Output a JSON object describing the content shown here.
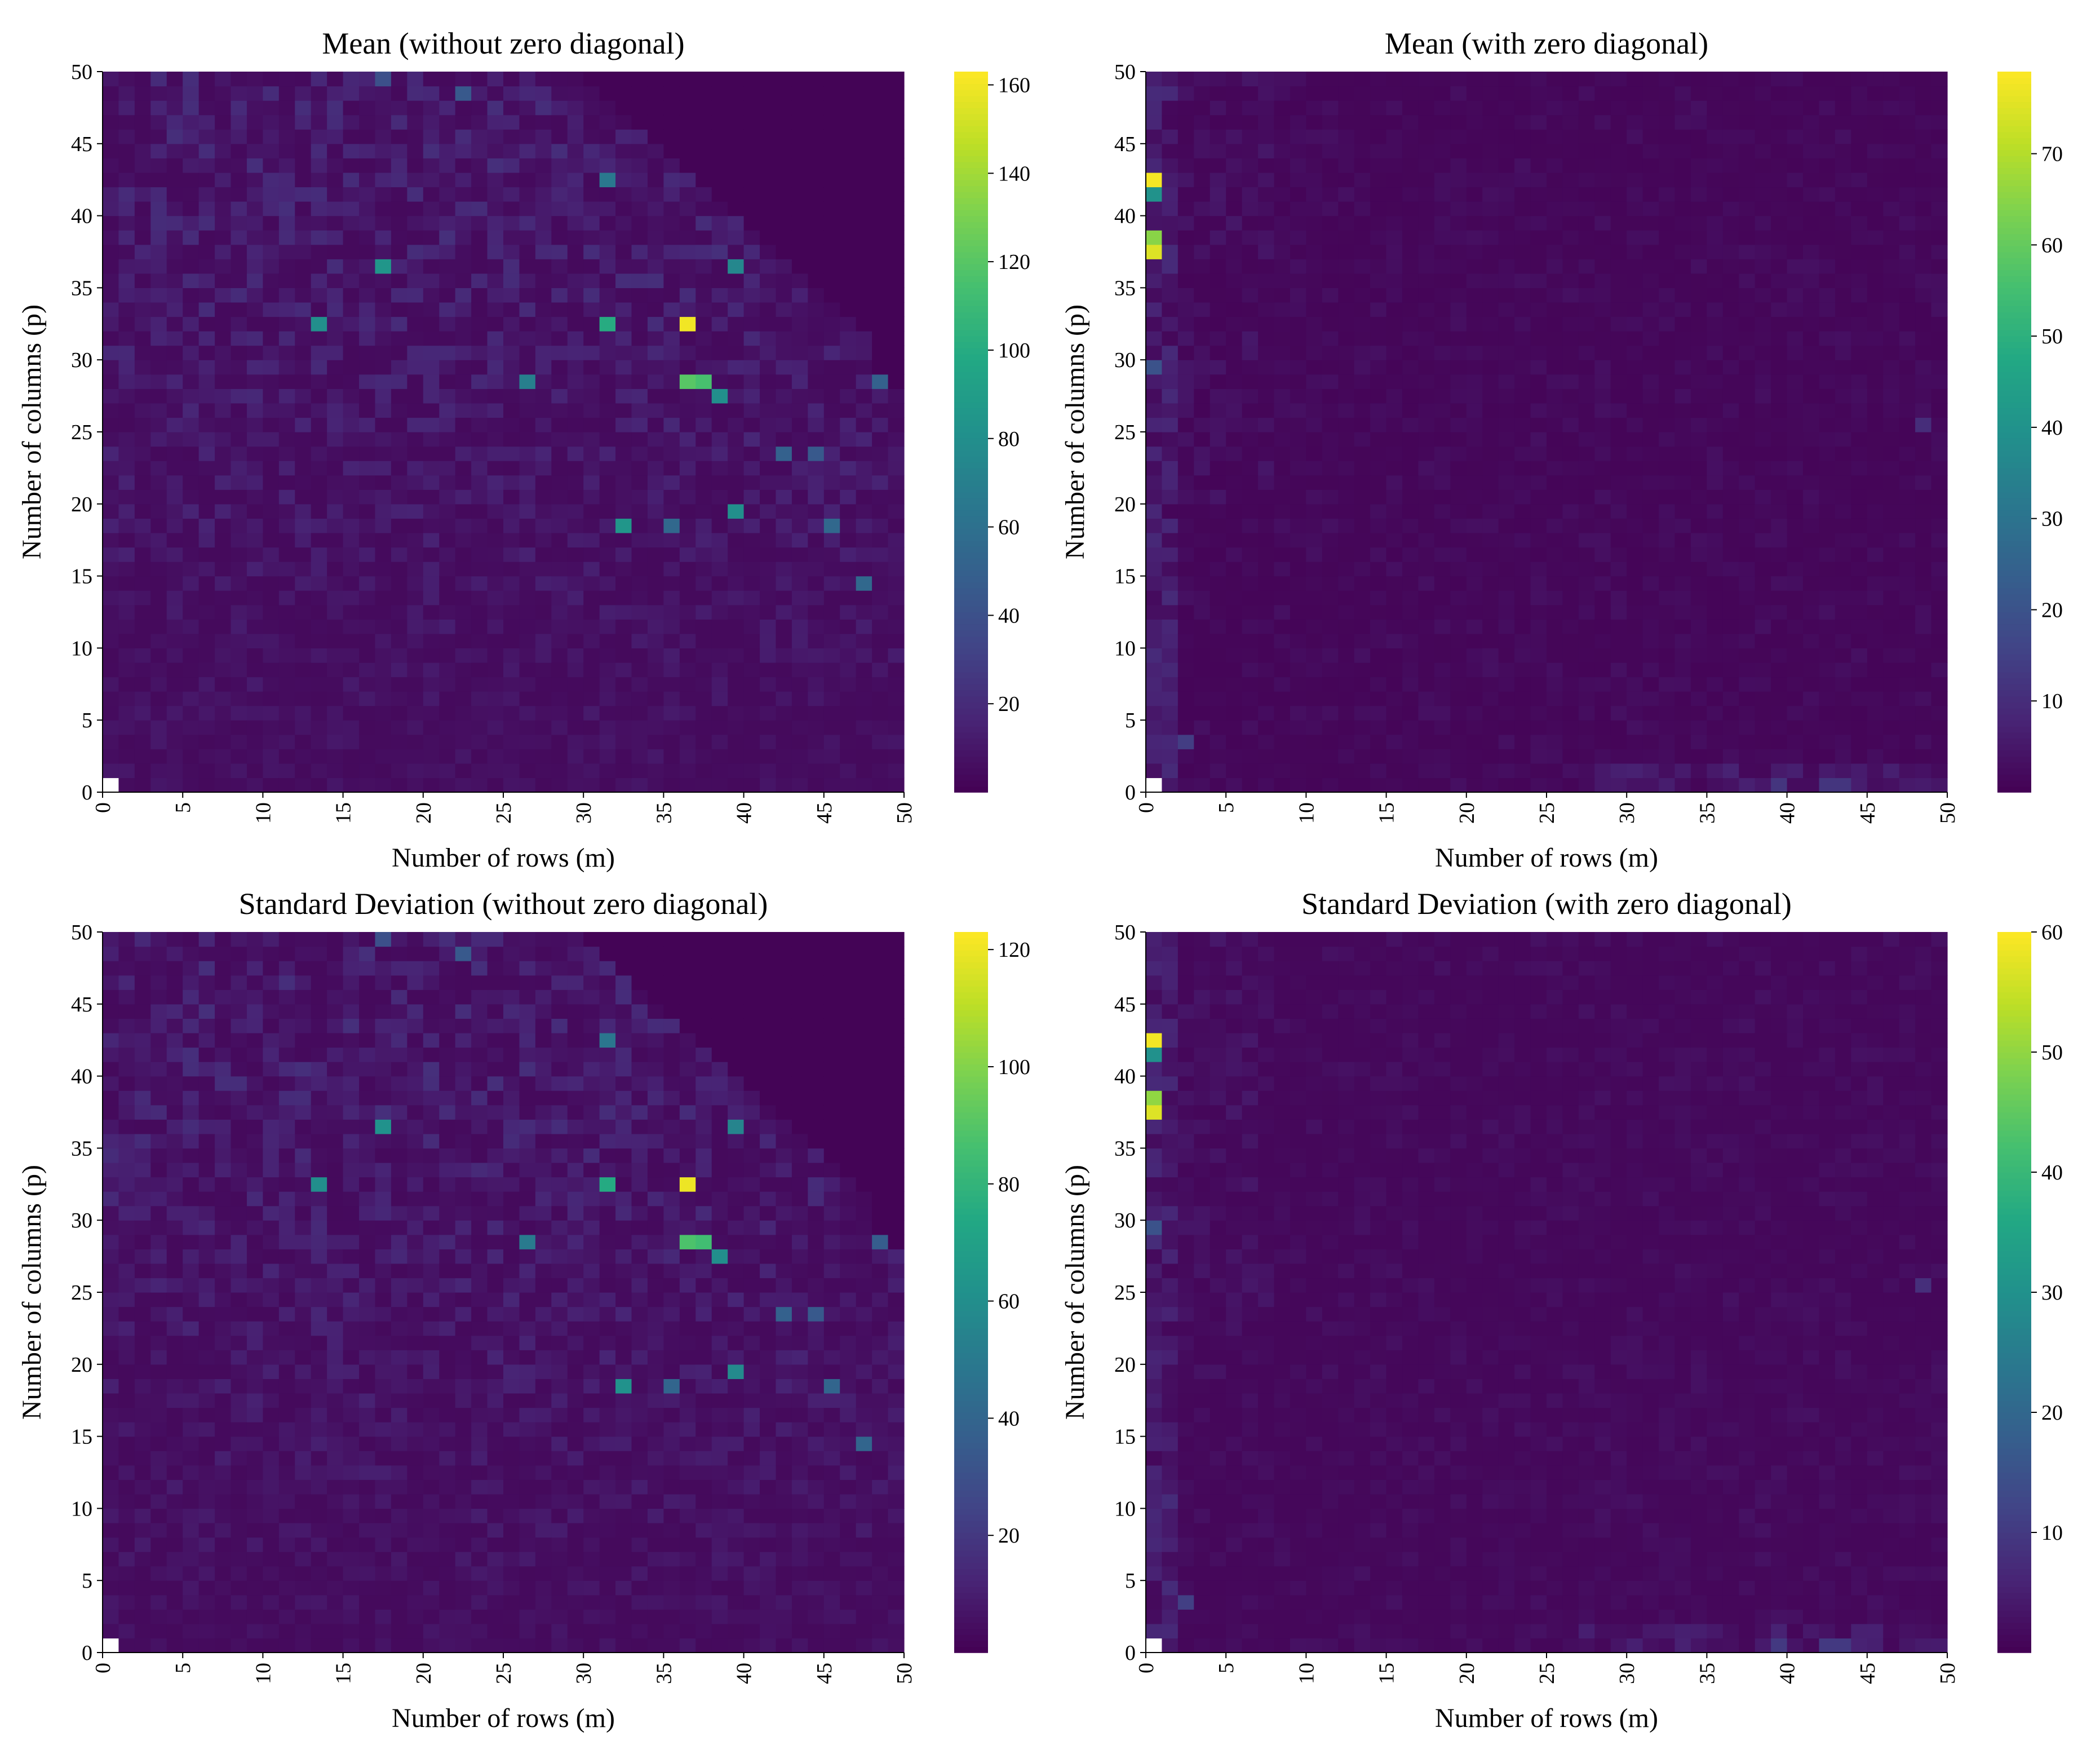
{
  "colormap": "viridis",
  "chart_data": [
    {
      "type": "heatmap",
      "id": "mean-without-zero-diagonal",
      "title": "Mean (without zero diagonal)",
      "xlabel": "Number of rows (m)",
      "ylabel": "Number of columns (p)",
      "xlim": [
        0,
        50
      ],
      "ylim": [
        0,
        50
      ],
      "x_ticks": [
        "0",
        "5",
        "10",
        "15",
        "20",
        "25",
        "30",
        "35",
        "40",
        "45",
        "50"
      ],
      "y_ticks": [
        "0",
        "5",
        "10",
        "15",
        "20",
        "25",
        "30",
        "35",
        "40",
        "45",
        "50"
      ],
      "colorbar": {
        "min": 0,
        "max": 163,
        "ticks": [
          "20",
          "40",
          "60",
          "80",
          "100",
          "120",
          "140",
          "160"
        ],
        "tick_values": [
          20,
          40,
          60,
          80,
          100,
          120,
          140,
          160
        ]
      },
      "pattern": "upper_right_empty",
      "background_level": 4,
      "noise_level": 12,
      "highlights": [
        {
          "m": 37,
          "p": 33,
          "value": 160
        },
        {
          "m": 38,
          "p": 29,
          "value": 115
        },
        {
          "m": 37,
          "p": 29,
          "value": 120
        },
        {
          "m": 32,
          "p": 33,
          "value": 100
        },
        {
          "m": 14,
          "p": 33,
          "value": 80
        },
        {
          "m": 18,
          "p": 37,
          "value": 85
        },
        {
          "m": 40,
          "p": 37,
          "value": 75
        },
        {
          "m": 39,
          "p": 28,
          "value": 80
        },
        {
          "m": 33,
          "p": 19,
          "value": 85
        },
        {
          "m": 40,
          "p": 20,
          "value": 80
        },
        {
          "m": 27,
          "p": 29,
          "value": 70
        },
        {
          "m": 32,
          "p": 43,
          "value": 65
        },
        {
          "m": 36,
          "p": 19,
          "value": 55
        },
        {
          "m": 43,
          "p": 24,
          "value": 50
        },
        {
          "m": 46,
          "p": 19,
          "value": 55
        },
        {
          "m": 48,
          "p": 15,
          "value": 55
        },
        {
          "m": 49,
          "p": 29,
          "value": 50
        },
        {
          "m": 23,
          "p": 49,
          "value": 45
        },
        {
          "m": 18,
          "p": 50,
          "value": 40
        },
        {
          "m": 45,
          "p": 24,
          "value": 45
        }
      ]
    },
    {
      "type": "heatmap",
      "id": "mean-with-zero-diagonal",
      "title": "Mean (with zero diagonal)",
      "xlabel": "Number of rows (m)",
      "ylabel": "Number of columns (p)",
      "xlim": [
        0,
        50
      ],
      "ylim": [
        0,
        50
      ],
      "x_ticks": [
        "0",
        "5",
        "10",
        "15",
        "20",
        "25",
        "30",
        "35",
        "40",
        "45",
        "50"
      ],
      "y_ticks": [
        "0",
        "5",
        "10",
        "15",
        "20",
        "25",
        "30",
        "35",
        "40",
        "45",
        "50"
      ],
      "colorbar": {
        "min": 0,
        "max": 79,
        "ticks": [
          "10",
          "20",
          "30",
          "40",
          "50",
          "60",
          "70"
        ],
        "tick_values": [
          10,
          20,
          30,
          40,
          50,
          60,
          70
        ]
      },
      "pattern": "left_and_bottom_edge",
      "background_level": 1,
      "noise_level": 4,
      "highlights": [
        {
          "m": 1,
          "p": 43,
          "value": 78
        },
        {
          "m": 1,
          "p": 42,
          "value": 40
        },
        {
          "m": 1,
          "p": 39,
          "value": 65
        },
        {
          "m": 1,
          "p": 38,
          "value": 75
        },
        {
          "m": 1,
          "p": 30,
          "value": 20
        },
        {
          "m": 40,
          "p": 1,
          "value": 12
        },
        {
          "m": 43,
          "p": 1,
          "value": 12
        },
        {
          "m": 44,
          "p": 1,
          "value": 12
        },
        {
          "m": 3,
          "p": 4,
          "value": 14
        },
        {
          "m": 49,
          "p": 26,
          "value": 10
        }
      ]
    },
    {
      "type": "heatmap",
      "id": "std-without-zero-diagonal",
      "title": "Standard Deviation (without zero diagonal)",
      "xlabel": "Number of rows (m)",
      "ylabel": "Number of columns (p)",
      "xlim": [
        0,
        50
      ],
      "ylim": [
        0,
        50
      ],
      "x_ticks": [
        "0",
        "5",
        "10",
        "15",
        "20",
        "25",
        "30",
        "35",
        "40",
        "45",
        "50"
      ],
      "y_ticks": [
        "0",
        "5",
        "10",
        "15",
        "20",
        "25",
        "30",
        "35",
        "40",
        "45",
        "50"
      ],
      "colorbar": {
        "min": 0,
        "max": 123,
        "ticks": [
          "20",
          "40",
          "60",
          "80",
          "100",
          "120"
        ],
        "tick_values": [
          20,
          40,
          60,
          80,
          100,
          120
        ]
      },
      "pattern": "upper_right_empty",
      "background_level": 3,
      "noise_level": 9,
      "highlights": [
        {
          "m": 37,
          "p": 33,
          "value": 120
        },
        {
          "m": 38,
          "p": 29,
          "value": 85
        },
        {
          "m": 37,
          "p": 29,
          "value": 88
        },
        {
          "m": 32,
          "p": 33,
          "value": 75
        },
        {
          "m": 14,
          "p": 33,
          "value": 60
        },
        {
          "m": 18,
          "p": 37,
          "value": 62
        },
        {
          "m": 40,
          "p": 37,
          "value": 55
        },
        {
          "m": 39,
          "p": 28,
          "value": 60
        },
        {
          "m": 33,
          "p": 19,
          "value": 62
        },
        {
          "m": 40,
          "p": 20,
          "value": 58
        },
        {
          "m": 27,
          "p": 29,
          "value": 50
        },
        {
          "m": 32,
          "p": 43,
          "value": 48
        },
        {
          "m": 36,
          "p": 19,
          "value": 40
        },
        {
          "m": 43,
          "p": 24,
          "value": 38
        },
        {
          "m": 46,
          "p": 19,
          "value": 40
        },
        {
          "m": 48,
          "p": 15,
          "value": 40
        },
        {
          "m": 49,
          "p": 29,
          "value": 36
        },
        {
          "m": 23,
          "p": 49,
          "value": 34
        },
        {
          "m": 18,
          "p": 50,
          "value": 30
        },
        {
          "m": 45,
          "p": 24,
          "value": 34
        }
      ]
    },
    {
      "type": "heatmap",
      "id": "std-with-zero-diagonal",
      "title": "Standard Deviation (with zero diagonal)",
      "xlabel": "Number of rows (m)",
      "ylabel": "Number of columns (p)",
      "xlim": [
        0,
        50
      ],
      "ylim": [
        0,
        50
      ],
      "x_ticks": [
        "0",
        "5",
        "10",
        "15",
        "20",
        "25",
        "30",
        "35",
        "40",
        "45",
        "50"
      ],
      "y_ticks": [
        "0",
        "5",
        "10",
        "15",
        "20",
        "25",
        "30",
        "35",
        "40",
        "45",
        "50"
      ],
      "colorbar": {
        "min": 0,
        "max": 60,
        "ticks": [
          "10",
          "20",
          "30",
          "40",
          "50",
          "60"
        ],
        "tick_values": [
          10,
          20,
          30,
          40,
          50,
          60
        ]
      },
      "pattern": "left_and_bottom_edge",
      "background_level": 1,
      "noise_level": 3,
      "highlights": [
        {
          "m": 1,
          "p": 43,
          "value": 59
        },
        {
          "m": 1,
          "p": 42,
          "value": 30
        },
        {
          "m": 1,
          "p": 39,
          "value": 50
        },
        {
          "m": 1,
          "p": 38,
          "value": 57
        },
        {
          "m": 1,
          "p": 30,
          "value": 15
        },
        {
          "m": 40,
          "p": 1,
          "value": 10
        },
        {
          "m": 43,
          "p": 1,
          "value": 10
        },
        {
          "m": 44,
          "p": 1,
          "value": 10
        },
        {
          "m": 3,
          "p": 4,
          "value": 11
        },
        {
          "m": 49,
          "p": 26,
          "value": 8
        }
      ]
    }
  ]
}
